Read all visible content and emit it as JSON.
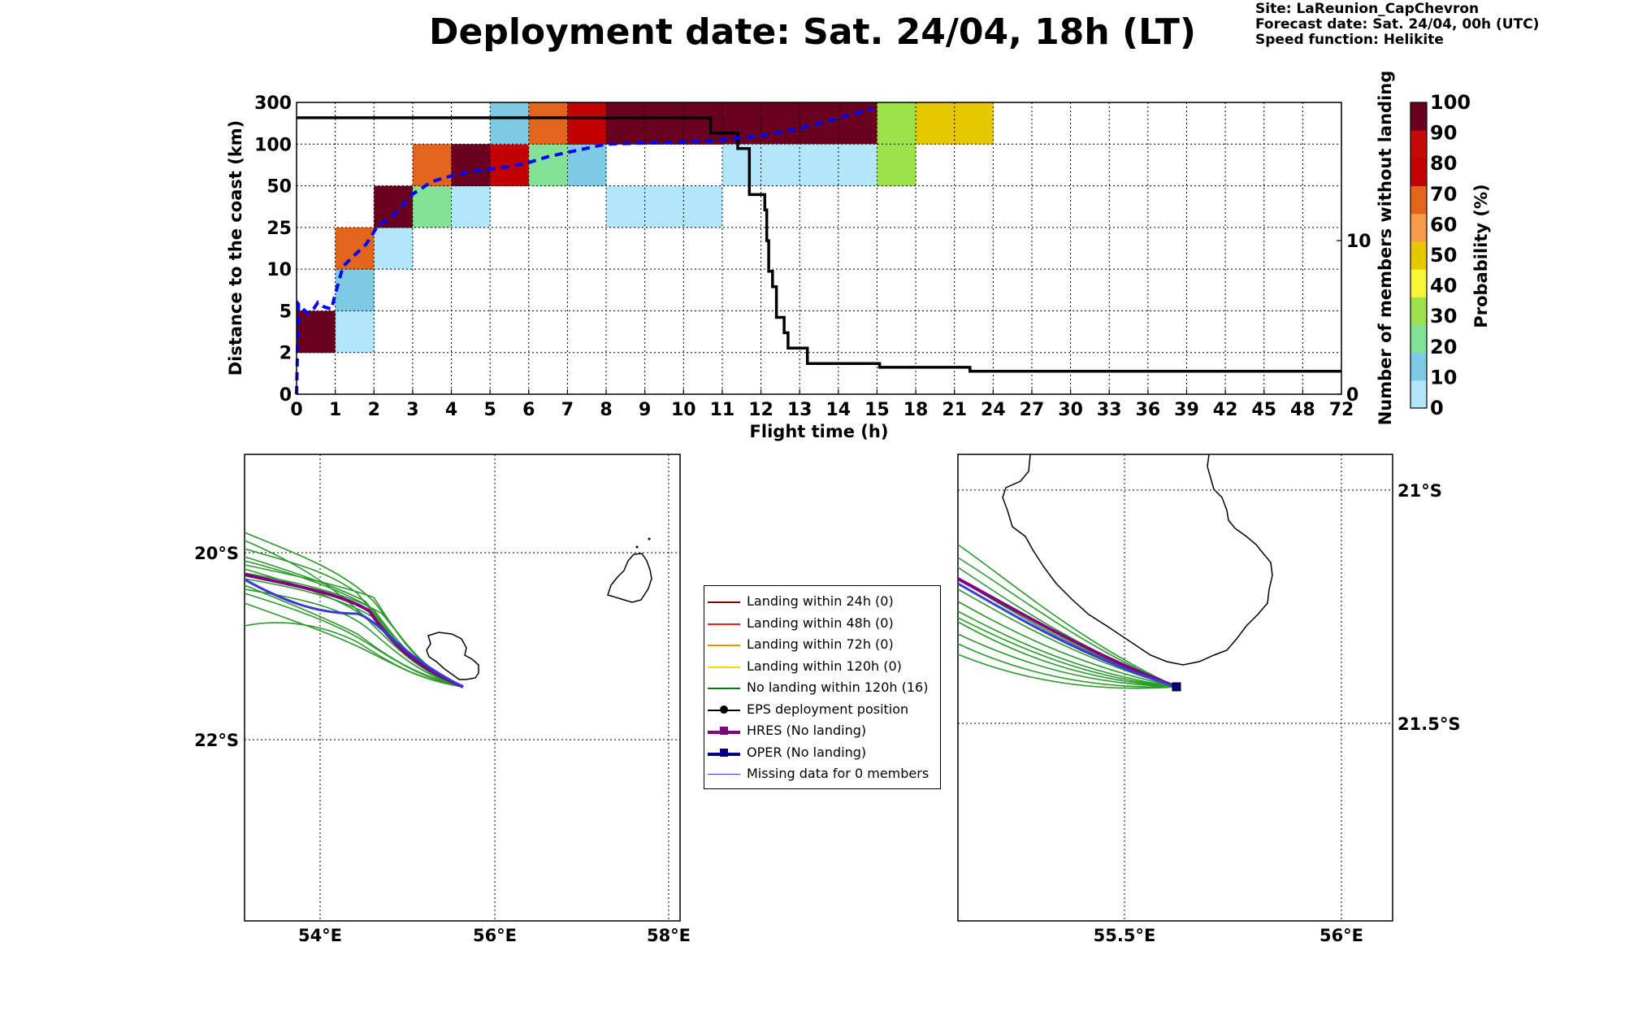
{
  "header": {
    "title": "Deployment date: Sat. 24/04, 18h (LT)",
    "site": "Site: LaReunion_CapChevron",
    "forecast": "Forecast date: Sat. 24/04, 00h (UTC)",
    "speed": "Speed function: Helikite"
  },
  "chart_data": [
    {
      "type": "heatmap",
      "xlabel": "Flight time (h)",
      "ylabel": "Distance to the coast (km)",
      "y2label": "Number of members without landing",
      "x_ticks": [
        "0",
        "1",
        "2",
        "3",
        "4",
        "5",
        "6",
        "7",
        "8",
        "9",
        "10",
        "11",
        "12",
        "13",
        "14",
        "15",
        "18",
        "21",
        "24",
        "27",
        "30",
        "33",
        "36",
        "39",
        "42",
        "45",
        "48",
        "72"
      ],
      "y_ticks": [
        "0",
        "2",
        "5",
        "10",
        "25",
        "50",
        "100",
        "300"
      ],
      "y2_ticks": [
        "0",
        "10"
      ],
      "y2_range": [
        0,
        19
      ],
      "colorbar": {
        "label": "Probability (%)",
        "ticks": [
          "0",
          "10",
          "20",
          "30",
          "40",
          "50",
          "60",
          "70",
          "80",
          "90",
          "100"
        ],
        "colors": [
          "#b3e5fb",
          "#7ecae5",
          "#82e295",
          "#9de24a",
          "#f7f73a",
          "#e6c800",
          "#f79b4b",
          "#e3651b",
          "#c20000",
          "#c50a0a",
          "#6a0020"
        ]
      },
      "cells": [
        {
          "x": 0,
          "y": 1,
          "color": "#6a0020"
        },
        {
          "x": 1,
          "y": 1,
          "color": "#b3e5fb"
        },
        {
          "x": 1,
          "y": 2,
          "color": "#7ecae5"
        },
        {
          "x": 1,
          "y": 3,
          "color": "#e3651b"
        },
        {
          "x": 2,
          "y": 3,
          "color": "#b3e5fb"
        },
        {
          "x": 2,
          "y": 4,
          "color": "#6a0020"
        },
        {
          "x": 3,
          "y": 4,
          "color": "#82e295"
        },
        {
          "x": 3,
          "y": 5,
          "color": "#e3651b"
        },
        {
          "x": 4,
          "y": 4,
          "color": "#b3e5fb"
        },
        {
          "x": 4,
          "y": 5,
          "color": "#6a0020"
        },
        {
          "x": 5,
          "y": 5,
          "color": "#c20000"
        },
        {
          "x": 5,
          "y": 6,
          "color": "#7ecae5"
        },
        {
          "x": 6,
          "y": 5,
          "color": "#82e295"
        },
        {
          "x": 6,
          "y": 6,
          "color": "#e3651b"
        },
        {
          "x": 7,
          "y": 5,
          "color": "#7ecae5"
        },
        {
          "x": 7,
          "y": 6,
          "color": "#c20000"
        },
        {
          "x": 8,
          "y": 4,
          "color": "#b3e5fb"
        },
        {
          "x": 9,
          "y": 4,
          "color": "#b3e5fb"
        },
        {
          "x": 10,
          "y": 4,
          "color": "#b3e5fb"
        },
        {
          "x": 8,
          "y": 6,
          "color": "#6a0020"
        },
        {
          "x": 9,
          "y": 6,
          "color": "#6a0020"
        },
        {
          "x": 10,
          "y": 6,
          "color": "#6a0020"
        },
        {
          "x": 11,
          "y": 6,
          "color": "#6a0020"
        },
        {
          "x": 12,
          "y": 6,
          "color": "#6a0020"
        },
        {
          "x": 13,
          "y": 6,
          "color": "#6a0020"
        },
        {
          "x": 14,
          "y": 6,
          "color": "#6a0020"
        },
        {
          "x": 11,
          "y": 5,
          "color": "#b3e5fb"
        },
        {
          "x": 12,
          "y": 5,
          "color": "#b3e5fb"
        },
        {
          "x": 13,
          "y": 5,
          "color": "#b3e5fb"
        },
        {
          "x": 14,
          "y": 5,
          "color": "#b3e5fb"
        },
        {
          "x": 15,
          "y": 5,
          "color": "#9de24a"
        },
        {
          "x": 15,
          "y": 6,
          "color": "#9de24a"
        },
        {
          "x": 16,
          "y": 6,
          "color": "#e6c800"
        },
        {
          "x": 17,
          "y": 6,
          "color": "#e6c800"
        }
      ],
      "members_without_landing": [
        [
          0,
          18
        ],
        [
          10.7,
          18
        ],
        [
          10.7,
          17
        ],
        [
          11.4,
          17
        ],
        [
          11.4,
          16
        ],
        [
          11.7,
          16
        ],
        [
          11.7,
          13
        ],
        [
          12.1,
          13
        ],
        [
          12.1,
          12
        ],
        [
          12.15,
          12
        ],
        [
          12.15,
          10
        ],
        [
          12.2,
          10
        ],
        [
          12.2,
          8
        ],
        [
          12.3,
          8
        ],
        [
          12.3,
          7
        ],
        [
          12.4,
          7
        ],
        [
          12.4,
          5
        ],
        [
          12.6,
          5
        ],
        [
          12.6,
          4
        ],
        [
          12.7,
          4
        ],
        [
          12.7,
          3
        ],
        [
          13.2,
          3
        ],
        [
          13.2,
          2
        ],
        [
          15.2,
          2
        ],
        [
          15.2,
          1.75
        ],
        [
          22.2,
          1.75
        ],
        [
          22.2,
          1.5
        ],
        [
          72,
          1.5
        ]
      ],
      "mean_distance": [
        [
          0,
          0
        ],
        [
          0.05,
          5.8
        ],
        [
          0.15,
          5.3
        ],
        [
          0.3,
          4.8
        ],
        [
          0.45,
          5.3
        ],
        [
          0.55,
          6.0
        ],
        [
          0.7,
          5.5
        ],
        [
          0.9,
          5.2
        ],
        [
          1.0,
          7
        ],
        [
          1.2,
          11
        ],
        [
          1.5,
          15
        ],
        [
          1.8,
          19
        ],
        [
          2.1,
          26
        ],
        [
          2.5,
          32
        ],
        [
          3.0,
          45
        ],
        [
          3.5,
          55
        ],
        [
          4.0,
          62
        ],
        [
          4.5,
          67
        ],
        [
          5.0,
          70
        ],
        [
          5.5,
          73
        ],
        [
          6.0,
          78
        ],
        [
          6.5,
          85
        ],
        [
          7.0,
          90
        ],
        [
          7.5,
          95
        ],
        [
          8.0,
          100
        ],
        [
          9.0,
          105
        ],
        [
          10.0,
          110
        ],
        [
          11.0,
          120
        ],
        [
          12.0,
          140
        ],
        [
          13.0,
          175
        ],
        [
          14.0,
          225
        ],
        [
          14.9,
          270
        ]
      ]
    },
    {
      "type": "map",
      "x_ticks": [
        "54°E",
        "56°E",
        "58°E"
      ],
      "y_ticks": [
        "20°S",
        "22°S"
      ]
    },
    {
      "type": "map",
      "x_ticks": [
        "55.5°E",
        "56°E"
      ],
      "y_ticks": [
        "21°S",
        "21.5°S"
      ]
    }
  ],
  "legend": [
    {
      "label": "Landing within 24h (0)",
      "color": "#8b0000",
      "style": "line"
    },
    {
      "label": "Landing within 48h (0)",
      "color": "#ff1a1a",
      "style": "line"
    },
    {
      "label": "Landing within 72h (0)",
      "color": "#ff8c00",
      "style": "line"
    },
    {
      "label": "Landing within 120h (0)",
      "color": "#ffd700",
      "style": "line"
    },
    {
      "label": "No landing within 120h (16)",
      "color": "#008000",
      "style": "line"
    },
    {
      "label": "EPS deployment position",
      "color": "#000000",
      "style": "circle"
    },
    {
      "label": "HRES (No landing)",
      "color": "#800080",
      "style": "square"
    },
    {
      "label": "OPER (No landing)",
      "color": "#000080",
      "style": "square"
    },
    {
      "label": "Missing data for 0 members",
      "color": "#3333ff",
      "style": "thin"
    }
  ]
}
